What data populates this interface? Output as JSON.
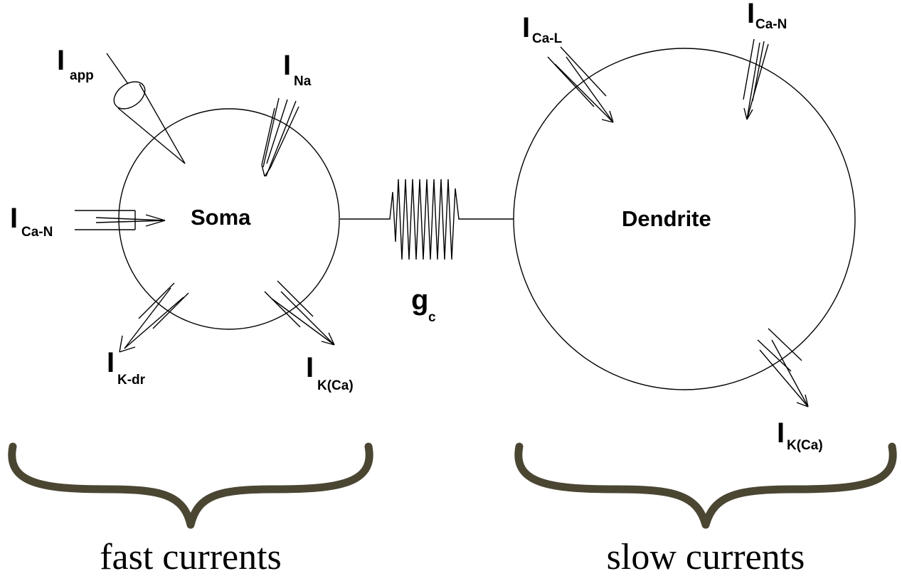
{
  "soma": {
    "label": "Soma",
    "currents": {
      "app": {
        "main": "I",
        "sub": "app"
      },
      "na": {
        "main": "I",
        "sub": "Na"
      },
      "ca_n": {
        "main": "I",
        "sub": "Ca-N"
      },
      "k_dr": {
        "main": "I",
        "sub": "K-dr"
      },
      "k_ca": {
        "main": "I",
        "sub": "K(Ca)"
      }
    }
  },
  "dendrite": {
    "label": "Dendrite",
    "currents": {
      "ca_l": {
        "main": "I",
        "sub": "Ca-L"
      },
      "ca_n": {
        "main": "I",
        "sub": "Ca-N"
      },
      "k_ca": {
        "main": "I",
        "sub": "K(Ca)"
      }
    }
  },
  "coupling": {
    "main": "g",
    "sub": "c"
  },
  "groups": {
    "fast": "fast currents",
    "slow": "slow currents"
  },
  "colors": {
    "brace": "#4a4632",
    "stroke": "#000000"
  }
}
